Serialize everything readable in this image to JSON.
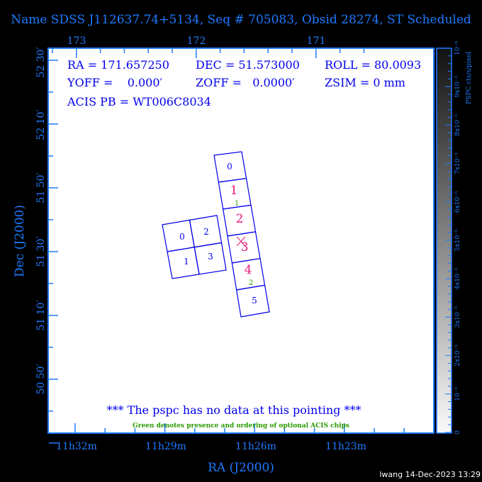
{
  "title": "Name SDSS J112637.74+5134, Seq # 705083, Obsid 28274, ST Scheduled",
  "info": {
    "ra": "RA = 171.657250",
    "dec": "DEC = 51.573000",
    "roll": "ROLL = 80.0093",
    "yoff": "YOFF =    0.000′",
    "zoff": "ZOFF =   0.0000′",
    "zsim": "ZSIM = 0 mm",
    "acis_pb": "ACIS PB = WT006C8034"
  },
  "top_axis_labels": [
    "173",
    "172",
    "171"
  ],
  "bottom_axis_labels": [
    "11h32m",
    "11h29m",
    "11h26m",
    "11h23m"
  ],
  "left_axis_labels": [
    "52 30′",
    "52 10′",
    "51 50′",
    "51 30′",
    "51 10′",
    "50 50′"
  ],
  "xlabel": "RA (J2000)",
  "ylabel": "Dec (J2000)",
  "notice": "*** The pspc has no data at this pointing ***",
  "green_note": "Green denotes presence and ordering of optional ACIS chips",
  "colorbar": {
    "label": "PSPC cts/s/pixel",
    "ticks": [
      "0",
      "10⁻⁵",
      "2x10⁻⁵",
      "3x10⁻⁵",
      "4x10⁻⁵",
      "5x10⁻⁵",
      "6x10⁻⁵",
      "7x10⁻⁵",
      "8x10⁻⁵",
      "9x10⁻⁵",
      "10⁻⁴"
    ]
  },
  "chips": {
    "i_array": [
      "0",
      "2",
      "1",
      "3"
    ],
    "s_array": [
      "0",
      "1",
      "2",
      "3",
      "4",
      "5"
    ],
    "s_optional_green": [
      "1",
      "2"
    ]
  },
  "footer": "lwang 14-Dec-2023 13:29",
  "colors": {
    "axis": "#1e7bff",
    "chip": "#0000ee",
    "highlight": "#e8187a",
    "optional": "#2a9a00",
    "background": "#000000"
  }
}
